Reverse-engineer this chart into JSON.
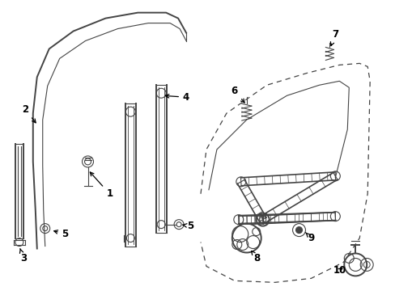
{
  "bg_color": "#ffffff",
  "line_color": "#444444",
  "label_color": "#000000",
  "lw_main": 1.4,
  "lw_thin": 0.8,
  "lw_dash": 0.9,
  "label_fs": 8.5
}
